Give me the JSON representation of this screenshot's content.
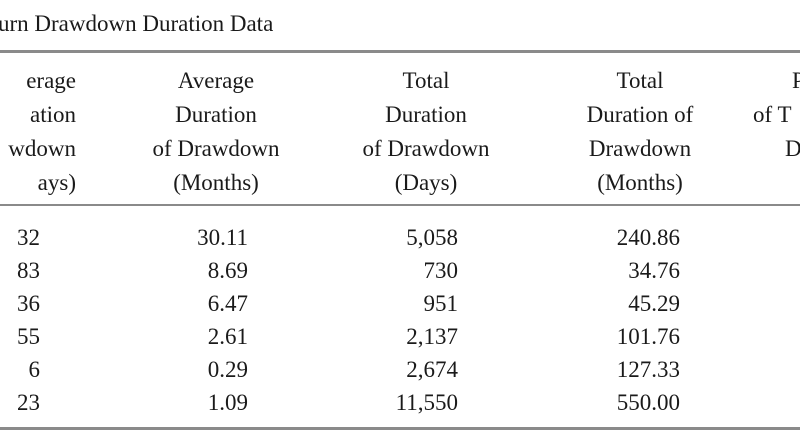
{
  "title": "urn Drawdown Duration Data",
  "headers": [
    [
      "erage",
      "ation",
      "wdown",
      "ays)"
    ],
    [
      "Average",
      "Duration",
      "of Drawdown",
      "(Months)"
    ],
    [
      "Total",
      "Duration",
      "of Drawdown",
      "(Days)"
    ],
    [
      "Total",
      "Duration of",
      "Drawdown",
      "(Months)"
    ],
    [
      "P",
      "of T",
      "D"
    ]
  ],
  "columns": [
    [
      "32",
      "83",
      "36",
      "55",
      "6",
      "23"
    ],
    [
      "30.11",
      "8.69",
      "6.47",
      "2.61",
      "0.29",
      "1.09"
    ],
    [
      "5,058",
      "730",
      "951",
      "2,137",
      "2,674",
      "11,550"
    ],
    [
      "240.86",
      "34.76",
      "45.29",
      "101.76",
      "127.33",
      "550.00"
    ]
  ]
}
